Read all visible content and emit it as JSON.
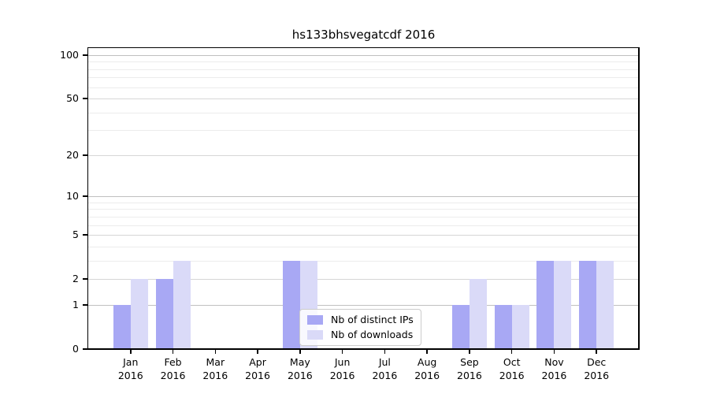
{
  "chart_data": {
    "type": "bar",
    "title": "hs133bhsvegatcdf 2016",
    "categories": [
      "Jan",
      "Feb",
      "Mar",
      "Apr",
      "May",
      "Jun",
      "Jul",
      "Aug",
      "Sep",
      "Oct",
      "Nov",
      "Dec"
    ],
    "x_sublabel": "2016",
    "series": [
      {
        "name": "Nb of distinct IPs",
        "color": "#a8a8f4",
        "values": [
          1,
          2,
          0,
          0,
          3,
          0,
          0,
          0,
          1,
          1,
          3,
          3
        ]
      },
      {
        "name": "Nb of downloads",
        "color": "#dadaf8",
        "values": [
          2,
          3,
          0,
          0,
          3,
          0,
          0,
          0,
          2,
          1,
          3,
          3
        ]
      }
    ],
    "y_axis": {
      "scale": "log1p",
      "min": 0,
      "max": 112,
      "labeled_ticks": [
        0,
        1,
        2,
        5,
        10,
        20,
        50,
        100
      ],
      "minor_ticks": [
        3,
        4,
        6,
        7,
        8,
        9,
        30,
        40,
        60,
        70,
        80,
        90
      ],
      "decade_ticks": [
        1,
        10,
        100
      ]
    },
    "legend": {
      "location": "lower center"
    },
    "grid": "both"
  },
  "colors": {
    "bar_distinct_ips": "#a8a8f4",
    "bar_downloads": "#dadaf8",
    "spine": "#000000",
    "grid_decade": "#c0c0c0",
    "grid_labeled": "#d6d6d6",
    "grid_minor": "#ececec",
    "legend_border": "#cccccc"
  }
}
